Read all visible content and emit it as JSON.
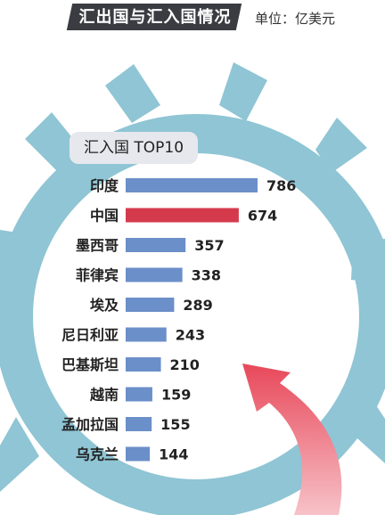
{
  "header": {
    "title": "汇出国与汇入国情况",
    "unit": "单位：亿美元"
  },
  "subtitle": "汇入国 TOP10",
  "colors": {
    "bar_default": "#6b8fc9",
    "bar_highlight": "#d53a4c",
    "gear": "#8fc5d4",
    "header_bg": "#3a3c42"
  },
  "chart_data": {
    "type": "bar",
    "orientation": "horizontal",
    "title": "汇入国 TOP10",
    "unit": "亿美元",
    "categories": [
      "印度",
      "中国",
      "墨西哥",
      "菲律宾",
      "埃及",
      "尼日利亚",
      "巴基斯坦",
      "越南",
      "孟加拉国",
      "乌克兰"
    ],
    "values": [
      786,
      674,
      357,
      338,
      289,
      243,
      210,
      159,
      155,
      144
    ],
    "highlight": "中国",
    "xlim": [
      0,
      786
    ],
    "grid": false,
    "legend": "none"
  }
}
